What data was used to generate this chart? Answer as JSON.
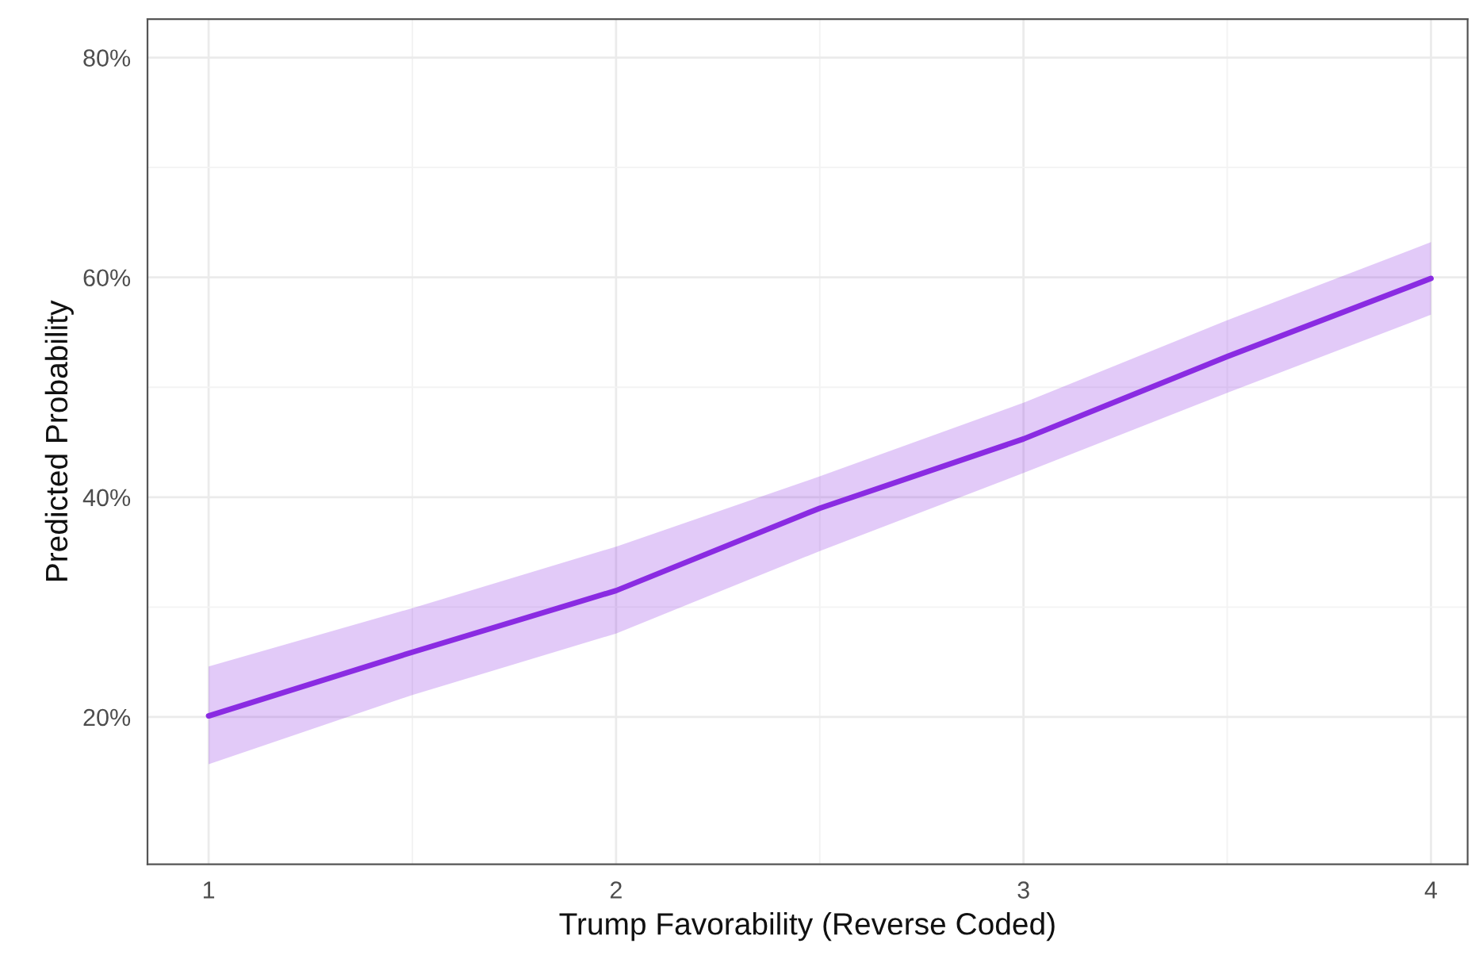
{
  "chart_data": {
    "type": "line",
    "xlabel": "Trump Favorability (Reverse Coded)",
    "ylabel": "Predicted Probability",
    "x": [
      1,
      1.5,
      2,
      2.5,
      3,
      3.5,
      4
    ],
    "series": [
      {
        "color": "#8a2be2",
        "values": [
          20.1,
          25.9,
          31.5,
          39.0,
          45.3,
          52.8,
          59.9
        ],
        "lower": [
          15.7,
          22.0,
          27.6,
          35.1,
          42.2,
          49.5,
          56.6
        ],
        "upper": [
          24.6,
          29.9,
          35.5,
          41.9,
          48.6,
          56.1,
          63.2
        ]
      }
    ],
    "xlim": [
      0.85,
      4.09
    ],
    "ylim": [
      6.6,
      83.5
    ],
    "xticks": [
      1,
      2,
      3,
      4
    ],
    "yticks": [
      {
        "value": 20,
        "label": "20%"
      },
      {
        "value": 40,
        "label": "40%"
      },
      {
        "value": 60,
        "label": "60%"
      },
      {
        "value": 80,
        "label": "80%"
      }
    ],
    "grid": true,
    "marker": "none",
    "line_style": "solid"
  }
}
